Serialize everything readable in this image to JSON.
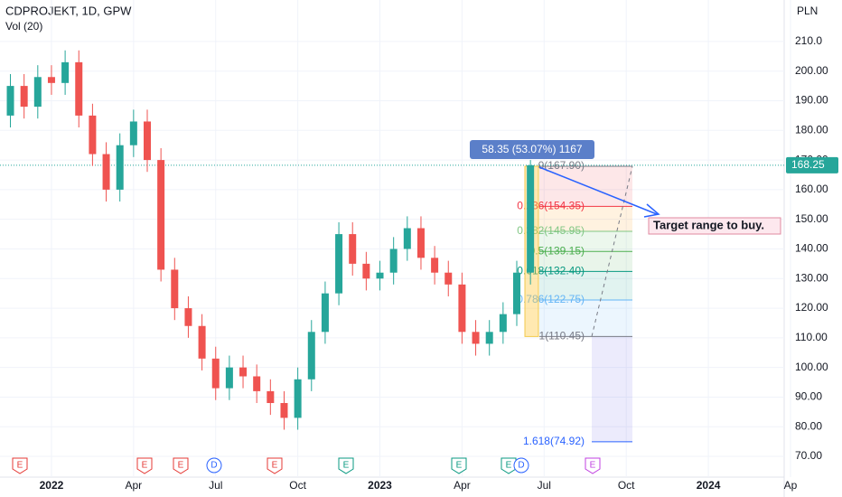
{
  "chart_data": {
    "type": "candlestick",
    "title": "CDPROJEKT, 1D, GPW",
    "indicator": "Vol (20)",
    "currency": "PLN",
    "x": [
      -1.5,
      -1,
      -0.5,
      0,
      0.5,
      1,
      1.5,
      2,
      2.5,
      3,
      3.5,
      4,
      4.5,
      5,
      5.5,
      6,
      6.5,
      7,
      7.5,
      8,
      8.5,
      9,
      9.5,
      10,
      10.5,
      11,
      11.5,
      12,
      12.5,
      13,
      13.5,
      14,
      14.5,
      15,
      15.5,
      16,
      16.5,
      17,
      17.5
    ],
    "open": [
      185,
      195,
      188,
      198,
      196,
      203,
      185,
      172,
      160,
      175,
      183,
      170,
      133,
      120,
      114,
      103,
      93,
      100,
      97,
      92,
      88,
      83,
      96,
      112,
      125,
      145,
      135,
      130,
      132,
      140,
      147,
      137,
      132,
      128,
      112,
      108,
      112,
      118,
      132
    ],
    "high": [
      199,
      199,
      202,
      202,
      207,
      207,
      189,
      176,
      179,
      187,
      187,
      174,
      137,
      124,
      118,
      107,
      104,
      104,
      101,
      96,
      92,
      100,
      116,
      129,
      149,
      149,
      139,
      136,
      144,
      151,
      151,
      141,
      136,
      132,
      116,
      116,
      122,
      136,
      170
    ],
    "low": [
      181,
      184,
      184,
      192,
      192,
      181,
      168,
      156,
      156,
      171,
      166,
      129,
      116,
      110,
      99,
      89,
      89,
      93,
      88,
      84,
      79,
      79,
      92,
      108,
      121,
      131,
      126,
      126,
      128,
      136,
      133,
      128,
      124,
      108,
      104,
      104,
      108,
      114,
      128
    ],
    "close": [
      195,
      188,
      198,
      196,
      203,
      185,
      172,
      160,
      175,
      183,
      170,
      133,
      120,
      114,
      103,
      93,
      100,
      97,
      92,
      88,
      83,
      96,
      112,
      125,
      145,
      135,
      130,
      132,
      140,
      147,
      137,
      132,
      128,
      112,
      108,
      112,
      118,
      132,
      168.25
    ],
    "up_color": "#26a69a",
    "down_color": "#ef5350",
    "last_price": {
      "value": 168.25,
      "label": "168.25"
    },
    "xlim": [
      -1.88,
      26.77
    ],
    "xticks": [
      {
        "value": 0,
        "label": "2022"
      },
      {
        "value": 3,
        "label": "Apr"
      },
      {
        "value": 6,
        "label": "Jul"
      },
      {
        "value": 9,
        "label": "Oct"
      },
      {
        "value": 12,
        "label": "2023"
      },
      {
        "value": 15,
        "label": "Apr"
      },
      {
        "value": 18,
        "label": "Jul"
      },
      {
        "value": 21,
        "label": "Oct"
      },
      {
        "value": 24,
        "label": "2024"
      },
      {
        "value": 27,
        "label": "Ap"
      }
    ],
    "ylim": [
      63,
      224
    ],
    "yticks": [
      {
        "value": 70,
        "label": "70.00"
      },
      {
        "value": 80,
        "label": "80.00"
      },
      {
        "value": 90,
        "label": "90.00"
      },
      {
        "value": 100,
        "label": "100.00"
      },
      {
        "value": 110,
        "label": "110.00"
      },
      {
        "value": 120,
        "label": "120.00"
      },
      {
        "value": 130,
        "label": "130.00"
      },
      {
        "value": 140,
        "label": "140.00"
      },
      {
        "value": 150,
        "label": "150.00"
      },
      {
        "value": 160,
        "label": "160.00"
      },
      {
        "value": 170,
        "label": "170.00"
      },
      {
        "value": 180,
        "label": "180.00"
      },
      {
        "value": 190,
        "label": "190.00"
      },
      {
        "value": 200,
        "label": "200.00"
      },
      {
        "value": 210,
        "label": "210.0"
      }
    ],
    "measure_label": "58.35 (53.07%) 1167",
    "fib_levels": [
      {
        "label": "0(167.90)",
        "value": 167.9,
        "color": "#787b86"
      },
      {
        "label": "0.236(154.35)",
        "value": 154.35,
        "color": "#f23645"
      },
      {
        "label": "0.382(145.95)",
        "value": 145.95,
        "color": "#81c784"
      },
      {
        "label": "0.5(139.15)",
        "value": 139.15,
        "color": "#4caf50"
      },
      {
        "label": "0.618(132.40)",
        "value": 132.4,
        "color": "#089981"
      },
      {
        "label": "0.786(122.75)",
        "value": 122.75,
        "color": "#64b5f6"
      },
      {
        "label": "1(110.45)",
        "value": 110.45,
        "color": "#787b86"
      },
      {
        "label": "1.618(74.92)",
        "value": 74.92,
        "color": "#2962ff"
      }
    ],
    "annotation": "Target range to buy.",
    "events": [
      {
        "label": "E",
        "color": "#e53935"
      },
      {
        "label": "E",
        "color": "#e53935"
      },
      {
        "label": "E",
        "color": "#e53935"
      },
      {
        "label": "D",
        "color": "#2962ff"
      },
      {
        "label": "E",
        "color": "#e53935"
      },
      {
        "label": "E",
        "color": "#089981"
      },
      {
        "label": "E",
        "color": "#089981"
      },
      {
        "label": "E",
        "color": "#089981"
      },
      {
        "label": "D",
        "color": "#2962ff"
      },
      {
        "label": "E",
        "color": "#c040e0"
      }
    ]
  }
}
